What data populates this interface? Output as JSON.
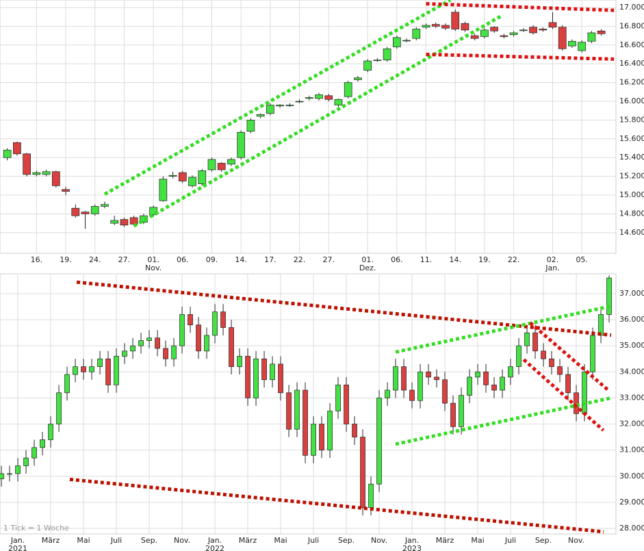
{
  "chart_data": [
    {
      "type": "candlestick",
      "grid": true,
      "up_color": "#44e044",
      "down_color": "#d94040",
      "open": [
        15400,
        15560,
        15440,
        15220,
        15220,
        15250,
        15060,
        14860,
        14820,
        14800,
        14880,
        14700,
        14740,
        14760,
        14710,
        14790,
        14940,
        15200,
        15240,
        15100,
        15120,
        15270,
        15340,
        15330,
        15400,
        15680,
        15840,
        15870,
        15950,
        15960,
        16000,
        16030,
        16030,
        16060,
        15960,
        16050,
        16230,
        16330,
        16440,
        16440,
        16580,
        16650,
        16670,
        16790,
        16820,
        16810,
        16950,
        16830,
        16700,
        16690,
        16790,
        16700,
        16710,
        16760,
        16790,
        16770,
        16840,
        16790,
        16590,
        16540,
        16640,
        16750
      ],
      "close": [
        15480,
        15440,
        15220,
        15240,
        15250,
        15100,
        15040,
        14780,
        14800,
        14880,
        14900,
        14730,
        14680,
        14690,
        14780,
        14870,
        15170,
        15210,
        15150,
        15190,
        15260,
        15380,
        15270,
        15380,
        15670,
        15800,
        15860,
        15960,
        15960,
        15960,
        16000,
        16040,
        16070,
        16020,
        16020,
        16200,
        16250,
        16430,
        16440,
        16560,
        16680,
        16650,
        16770,
        16810,
        16800,
        16780,
        16770,
        16760,
        16670,
        16760,
        16750,
        16690,
        16730,
        16760,
        16730,
        16760,
        16790,
        16560,
        16640,
        16630,
        16730,
        16720
      ],
      "high": [
        15500,
        15570,
        15450,
        15260,
        15270,
        15260,
        15090,
        14900,
        14830,
        14900,
        14930,
        14780,
        14760,
        14780,
        14800,
        14890,
        15200,
        15250,
        15260,
        15210,
        15280,
        15400,
        15350,
        15400,
        15690,
        15820,
        15870,
        15980,
        15970,
        15980,
        16020,
        16060,
        16090,
        16080,
        16030,
        16220,
        16270,
        16450,
        16460,
        16580,
        16700,
        16670,
        16790,
        16830,
        16840,
        16830,
        16980,
        16850,
        16720,
        16780,
        16800,
        16720,
        16750,
        16780,
        16810,
        16790,
        16950,
        16810,
        16660,
        16650,
        16750,
        16770
      ],
      "low": [
        15370,
        15420,
        15200,
        15200,
        15200,
        15080,
        15000,
        14760,
        14640,
        14780,
        14860,
        14680,
        14660,
        14670,
        14690,
        14770,
        14930,
        15180,
        15130,
        15080,
        15100,
        15250,
        15250,
        15310,
        15380,
        15660,
        15820,
        15850,
        15930,
        15940,
        15980,
        16010,
        16010,
        16000,
        15940,
        16030,
        16210,
        16310,
        16420,
        16420,
        16560,
        16630,
        16650,
        16770,
        16780,
        16760,
        16750,
        16740,
        16650,
        16670,
        16730,
        16670,
        16690,
        16740,
        16710,
        16740,
        16770,
        16540,
        16570,
        16520,
        16620,
        16700
      ],
      "xlim": [
        -0.75,
        62.5
      ],
      "xticks": [
        {
          "value": 3,
          "label": "16."
        },
        {
          "value": 6,
          "label": "19."
        },
        {
          "value": 9,
          "label": "24."
        },
        {
          "value": 12,
          "label": "27."
        },
        {
          "value": 15,
          "label": "01."
        },
        {
          "value": 18,
          "label": "06."
        },
        {
          "value": 21,
          "label": "09."
        },
        {
          "value": 24,
          "label": "14."
        },
        {
          "value": 27,
          "label": "17."
        },
        {
          "value": 30,
          "label": "22."
        },
        {
          "value": 33,
          "label": "27."
        },
        {
          "value": 37,
          "label": "01."
        },
        {
          "value": 40,
          "label": "06."
        },
        {
          "value": 43,
          "label": "11."
        },
        {
          "value": 46,
          "label": "14."
        },
        {
          "value": 49,
          "label": "19."
        },
        {
          "value": 52,
          "label": "22."
        },
        {
          "value": 56,
          "label": "02."
        },
        {
          "value": 59,
          "label": "05."
        }
      ],
      "xsublabels": [
        {
          "value": 15,
          "label": "Nov."
        },
        {
          "value": 37,
          "label": "Dez."
        },
        {
          "value": 56,
          "label": "Jan."
        }
      ],
      "ylim": [
        14380,
        17080
      ],
      "yticks": [
        {
          "value": 14600,
          "label": "14.600"
        },
        {
          "value": 14800,
          "label": "14.800"
        },
        {
          "value": 15000,
          "label": "15.000"
        },
        {
          "value": 15200,
          "label": "15.200"
        },
        {
          "value": 15400,
          "label": "15.400"
        },
        {
          "value": 15600,
          "label": "15.600"
        },
        {
          "value": 15800,
          "label": "15.800"
        },
        {
          "value": 16000,
          "label": "16.000"
        },
        {
          "value": 16200,
          "label": "16.200"
        },
        {
          "value": 16400,
          "label": "16.400"
        },
        {
          "value": 16600,
          "label": "16.600"
        },
        {
          "value": 16800,
          "label": "16.800"
        },
        {
          "value": 17000,
          "label": "17.000"
        }
      ],
      "trendlines": [
        {
          "color": "#33dd22",
          "x": [
            10,
            45.5
          ],
          "y": [
            15010,
            17080
          ]
        },
        {
          "color": "#33dd22",
          "x": [
            13,
            50.9
          ],
          "y": [
            14670,
            16920
          ]
        },
        {
          "color": "#dd1111",
          "x": [
            43,
            62.3
          ],
          "y": [
            17040,
            16970
          ]
        },
        {
          "color": "#dd1111",
          "x": [
            43,
            62.3
          ],
          "y": [
            16500,
            16450
          ]
        }
      ]
    },
    {
      "type": "candlestick",
      "grid": true,
      "up_color": "#44e044",
      "down_color": "#d94040",
      "note": "1 Tick = 1 Woche",
      "open": [
        29900,
        30100,
        30100,
        30400,
        30700,
        31100,
        31400,
        32000,
        33200,
        33900,
        34200,
        34000,
        34200,
        34500,
        33500,
        34600,
        34800,
        35000,
        35200,
        35300,
        34900,
        34500,
        35000,
        36200,
        35800,
        34800,
        35400,
        36300,
        35700,
        34200,
        34600,
        33000,
        34500,
        33700,
        34300,
        33200,
        31800,
        33300,
        30800,
        32000,
        31000,
        32500,
        33500,
        32000,
        31500,
        28800,
        29700,
        33000,
        33300,
        34200,
        33300,
        32900,
        34000,
        33800,
        33700,
        32800,
        31900,
        33100,
        33800,
        34000,
        33500,
        33300,
        33800,
        34200,
        35000,
        35500,
        34800,
        34500,
        34200,
        33900,
        33200,
        32400,
        34000,
        35400,
        36200
      ],
      "close": [
        30100,
        30100,
        30400,
        30700,
        31100,
        31400,
        32000,
        33200,
        33900,
        34200,
        34000,
        34200,
        34500,
        33500,
        34600,
        34800,
        35000,
        35200,
        35300,
        34900,
        34500,
        35000,
        36200,
        35800,
        34800,
        35400,
        36300,
        35700,
        34200,
        34600,
        33000,
        34500,
        33700,
        34300,
        33200,
        31800,
        33300,
        30800,
        32000,
        31000,
        32500,
        33500,
        32000,
        31500,
        28800,
        29700,
        33000,
        33300,
        34200,
        33300,
        32900,
        34000,
        33800,
        33700,
        32800,
        31900,
        33100,
        33800,
        34000,
        33500,
        33300,
        33800,
        34200,
        35000,
        35500,
        34800,
        34500,
        34200,
        33900,
        33200,
        32400,
        34000,
        35400,
        36200,
        37600
      ],
      "high": [
        30400,
        30400,
        30700,
        31000,
        31400,
        31700,
        32300,
        33500,
        34200,
        34500,
        34500,
        34500,
        34800,
        34800,
        34900,
        35100,
        35300,
        35500,
        35600,
        35600,
        35200,
        35300,
        36500,
        36500,
        36100,
        35700,
        36600,
        36600,
        36000,
        34900,
        34900,
        34800,
        34800,
        34600,
        34600,
        33500,
        33600,
        33600,
        32300,
        32300,
        32800,
        33800,
        33800,
        32300,
        31800,
        30000,
        33300,
        33600,
        34500,
        34500,
        33600,
        34300,
        34300,
        34100,
        34000,
        33100,
        33400,
        34100,
        34300,
        34300,
        33800,
        34100,
        34500,
        35300,
        35800,
        35800,
        35100,
        34800,
        34500,
        34200,
        33500,
        34300,
        35700,
        36500,
        37700
      ],
      "low": [
        29600,
        29800,
        29800,
        30100,
        30400,
        30800,
        31100,
        31700,
        32900,
        33600,
        33700,
        33700,
        33900,
        33200,
        33200,
        34300,
        34500,
        34700,
        34900,
        34600,
        34200,
        34200,
        34700,
        35500,
        34500,
        34500,
        35100,
        35400,
        33900,
        33900,
        32700,
        32700,
        33400,
        33400,
        32900,
        31500,
        31500,
        30500,
        30500,
        30700,
        30700,
        32200,
        31700,
        31200,
        28500,
        28500,
        29400,
        32700,
        33000,
        33000,
        32600,
        32600,
        33500,
        33400,
        32500,
        31600,
        31600,
        32800,
        33500,
        33200,
        33000,
        33000,
        33500,
        33900,
        34700,
        34500,
        34200,
        33900,
        33600,
        32900,
        32100,
        32100,
        33700,
        35100,
        35900
      ],
      "xlim": [
        -0.17,
        74.83
      ],
      "xticks": [
        {
          "value": 2,
          "label": "Jan."
        },
        {
          "value": 6,
          "label": "März"
        },
        {
          "value": 10,
          "label": "Mai"
        },
        {
          "value": 14,
          "label": "Juli"
        },
        {
          "value": 18,
          "label": "Sep."
        },
        {
          "value": 22,
          "label": "Nov."
        },
        {
          "value": 26,
          "label": "Jan."
        },
        {
          "value": 30,
          "label": "März"
        },
        {
          "value": 34,
          "label": "Mai"
        },
        {
          "value": 38,
          "label": "Juli"
        },
        {
          "value": 42,
          "label": "Sep."
        },
        {
          "value": 46,
          "label": "Nov."
        },
        {
          "value": 50,
          "label": "Jan."
        },
        {
          "value": 54,
          "label": "März"
        },
        {
          "value": 58,
          "label": "Mai"
        },
        {
          "value": 62,
          "label": "Juli"
        },
        {
          "value": 66,
          "label": "Sep."
        },
        {
          "value": 70,
          "label": "Nov."
        }
      ],
      "xsublabels": [
        {
          "value": 2,
          "label": "2021"
        },
        {
          "value": 26,
          "label": "2022"
        },
        {
          "value": 50,
          "label": "2023"
        }
      ],
      "ylim": [
        27790,
        37760
      ],
      "yticks": [
        {
          "value": 28000,
          "label": "28.000"
        },
        {
          "value": 29000,
          "label": "29.000"
        },
        {
          "value": 30000,
          "label": "30.000"
        },
        {
          "value": 31000,
          "label": "31.000"
        },
        {
          "value": 32000,
          "label": "32.000"
        },
        {
          "value": 33000,
          "label": "33.000"
        },
        {
          "value": 34000,
          "label": "34.000"
        },
        {
          "value": 35000,
          "label": "35.000"
        },
        {
          "value": 36000,
          "label": "36.000"
        },
        {
          "value": 37000,
          "label": "37.000"
        }
      ],
      "trendlines": [
        {
          "color": "#bb1100",
          "x": [
            9.17,
            74.25
          ],
          "y": [
            37440,
            35410
          ]
        },
        {
          "color": "#bb1100",
          "x": [
            8.33,
            73.33
          ],
          "y": [
            29880,
            27870
          ]
        },
        {
          "color": "#33dd22",
          "x": [
            48,
            74.4
          ],
          "y": [
            34760,
            36530
          ]
        },
        {
          "color": "#33dd22",
          "x": [
            48,
            74.4
          ],
          "y": [
            31230,
            33010
          ]
        },
        {
          "color": "#dd1111",
          "x": [
            63.6,
            73.3
          ],
          "y": [
            34470,
            31760
          ]
        },
        {
          "color": "#dd1111",
          "x": [
            64.4,
            74
          ],
          "y": [
            35880,
            33270
          ]
        }
      ]
    }
  ]
}
